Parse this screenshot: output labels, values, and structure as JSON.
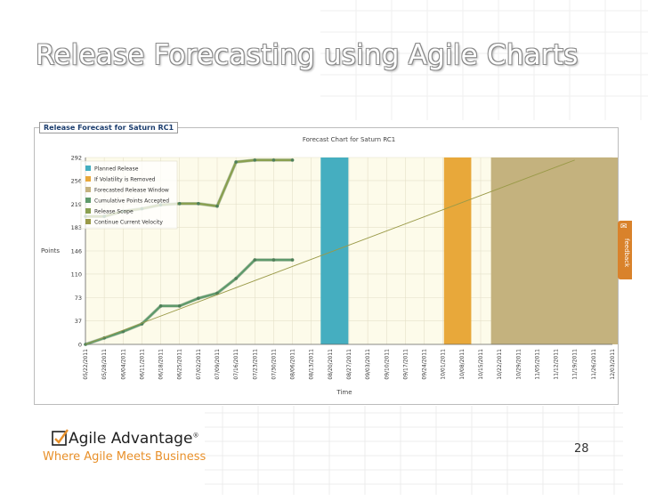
{
  "slide": {
    "title": "Release Forecasting using Agile Charts",
    "page_number": "28"
  },
  "panel": {
    "caption": "Release Forecast for Saturn RC1"
  },
  "feedback": {
    "label": "feedback"
  },
  "logo": {
    "name": "Agile Advantage",
    "trademark": "®",
    "tagline": "Where Agile Meets Business"
  },
  "colors": {
    "planned": "#45aec0",
    "volatility": "#e8a83a",
    "window": "#c4b27e",
    "accepted": "#5f9a6b",
    "scope": "#8aa050",
    "velocity": "#9a9a48",
    "plot_bg": "#fdfbea",
    "brand_orange": "#e8902a"
  },
  "chart_data": {
    "type": "line",
    "title": "Forecast Chart for Saturn RC1",
    "xlabel": "Time",
    "ylabel": "Points",
    "ylim": [
      0,
      292
    ],
    "y_ticks": [
      0,
      37,
      73,
      110,
      146,
      183,
      219,
      256,
      292
    ],
    "grid": true,
    "legend_position": "top-left",
    "x_categories": [
      "05/22/2011",
      "05/28/2011",
      "06/04/2011",
      "06/11/2011",
      "06/18/2011",
      "06/25/2011",
      "07/02/2011",
      "07/09/2011",
      "07/16/2011",
      "07/23/2011",
      "07/30/2011",
      "08/06/2011",
      "08/13/2011",
      "08/20/2011",
      "08/27/2011",
      "09/03/2011",
      "09/10/2011",
      "09/17/2011",
      "09/24/2011",
      "10/01/2011",
      "10/08/2011",
      "10/15/2011",
      "10/22/2011",
      "10/29/2011",
      "11/05/2011",
      "11/12/2011",
      "11/19/2011",
      "11/26/2011",
      "12/03/2011"
    ],
    "legend": [
      {
        "label": "Planned Release",
        "color": "#45aec0"
      },
      {
        "label": "If Volatility is Removed",
        "color": "#e8a83a"
      },
      {
        "label": "Forecasted Release Window",
        "color": "#c4b27e"
      },
      {
        "label": "Cumulative Points Accepted",
        "color": "#5f9a6b"
      },
      {
        "label": "Release Scope",
        "color": "#8aa050"
      },
      {
        "label": "Continue Current Velocity",
        "color": "#9a9a48"
      }
    ],
    "series": [
      {
        "name": "Cumulative Points Accepted",
        "x": [
          "05/22/2011",
          "05/28/2011",
          "06/04/2011",
          "06/11/2011",
          "06/18/2011",
          "06/25/2011",
          "07/02/2011",
          "07/09/2011",
          "07/16/2011",
          "07/23/2011",
          "07/30/2011",
          "08/06/2011"
        ],
        "values": [
          0,
          10,
          20,
          32,
          60,
          60,
          72,
          80,
          103,
          132,
          132,
          132
        ]
      },
      {
        "name": "Release Scope",
        "x": [
          "05/22/2011",
          "05/28/2011",
          "06/04/2011",
          "06/11/2011",
          "06/18/2011",
          "06/25/2011",
          "07/02/2011",
          "07/09/2011",
          "07/16/2011",
          "07/23/2011",
          "07/30/2011",
          "08/06/2011"
        ],
        "values": [
          200,
          200,
          208,
          212,
          218,
          220,
          220,
          216,
          285,
          288,
          288,
          288
        ]
      },
      {
        "name": "Continue Current Velocity",
        "x": [
          "05/22/2011",
          "11/19/2011"
        ],
        "values": [
          0,
          288
        ]
      }
    ],
    "bands": [
      {
        "name": "Planned Release",
        "from": "08/13/2011",
        "to": "08/20/2011",
        "offset": [
          0.5,
          0.97
        ]
      },
      {
        "name": "If Volatility is Removed",
        "from": "10/01/2011",
        "to": "10/08/2011",
        "offset": [
          0.05,
          0.5
        ]
      },
      {
        "name": "Forecasted Release Window",
        "from": "10/15/2011",
        "to": "12/03/2011",
        "offset": [
          0.55,
          0.55
        ]
      }
    ]
  }
}
